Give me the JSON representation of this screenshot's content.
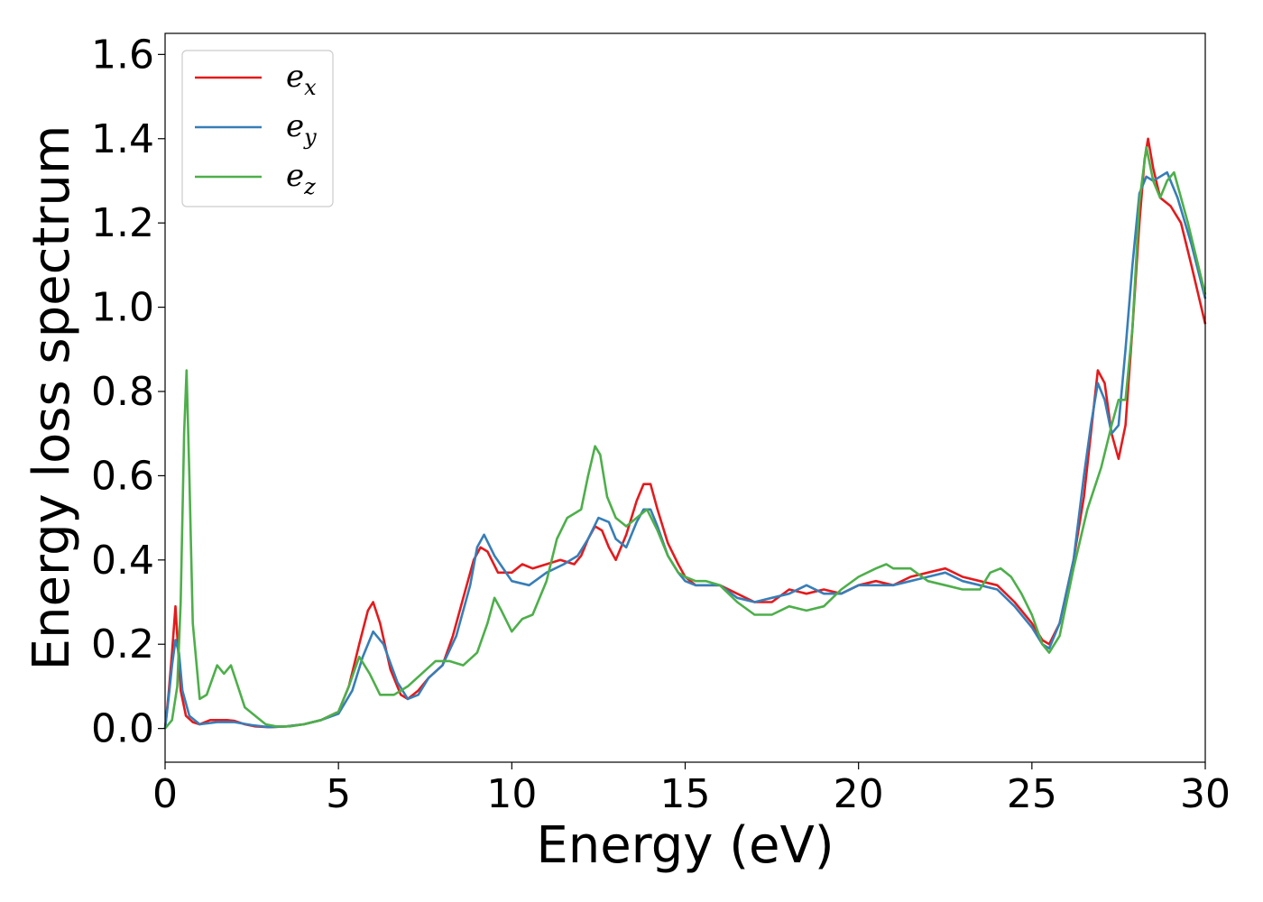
{
  "chart_data": {
    "type": "line",
    "title": "",
    "xlabel": "Energy (eV)",
    "ylabel": "Energy loss spectrum",
    "xlim": [
      0,
      30
    ],
    "ylim": [
      -0.08,
      1.65
    ],
    "xticks": [
      0,
      5,
      10,
      15,
      20,
      25,
      30
    ],
    "xtick_labels": [
      "0",
      "5",
      "10",
      "15",
      "20",
      "25",
      "30"
    ],
    "yticks": [
      0.0,
      0.2,
      0.4,
      0.6,
      0.8,
      1.0,
      1.2,
      1.4,
      1.6
    ],
    "ytick_labels": [
      "0.0",
      "0.2",
      "0.4",
      "0.6",
      "0.8",
      "1.0",
      "1.2",
      "1.4",
      "1.6"
    ],
    "grid": false,
    "legend_position": "top-left",
    "series": [
      {
        "name": "e",
        "subscript": "x",
        "color": "#e41a1c",
        "x": [
          0,
          0.1,
          0.2,
          0.3,
          0.35,
          0.45,
          0.6,
          0.8,
          1.0,
          1.3,
          1.5,
          1.8,
          2.0,
          2.3,
          2.6,
          3.0,
          3.5,
          4.0,
          4.5,
          5.0,
          5.3,
          5.6,
          5.85,
          6.0,
          6.2,
          6.5,
          6.8,
          7.0,
          7.3,
          7.6,
          8.0,
          8.3,
          8.6,
          8.9,
          9.1,
          9.3,
          9.6,
          10.0,
          10.3,
          10.6,
          11.0,
          11.4,
          11.8,
          12.0,
          12.2,
          12.4,
          12.6,
          12.8,
          13.0,
          13.3,
          13.6,
          13.8,
          14.0,
          14.2,
          14.5,
          14.8,
          15.0,
          15.3,
          15.6,
          16.0,
          16.5,
          17.0,
          17.5,
          18.0,
          18.5,
          19.0,
          19.5,
          20.0,
          20.5,
          21.0,
          21.5,
          22.0,
          22.5,
          23.0,
          23.5,
          24.0,
          24.5,
          25.0,
          25.3,
          25.5,
          25.8,
          26.2,
          26.5,
          26.7,
          26.9,
          27.1,
          27.3,
          27.5,
          27.7,
          27.9,
          28.1,
          28.25,
          28.35,
          28.5,
          28.7,
          29.0,
          29.3,
          29.6,
          30.0
        ],
        "y": [
          0.0,
          0.08,
          0.18,
          0.29,
          0.22,
          0.09,
          0.03,
          0.015,
          0.01,
          0.02,
          0.02,
          0.02,
          0.018,
          0.01,
          0.005,
          0.003,
          0.005,
          0.01,
          0.02,
          0.04,
          0.1,
          0.2,
          0.28,
          0.3,
          0.25,
          0.14,
          0.08,
          0.07,
          0.09,
          0.12,
          0.15,
          0.22,
          0.31,
          0.4,
          0.43,
          0.42,
          0.37,
          0.37,
          0.39,
          0.38,
          0.39,
          0.4,
          0.39,
          0.41,
          0.45,
          0.48,
          0.47,
          0.43,
          0.4,
          0.46,
          0.54,
          0.58,
          0.58,
          0.52,
          0.44,
          0.39,
          0.36,
          0.34,
          0.34,
          0.34,
          0.32,
          0.3,
          0.3,
          0.33,
          0.32,
          0.33,
          0.32,
          0.34,
          0.35,
          0.34,
          0.36,
          0.37,
          0.38,
          0.36,
          0.35,
          0.34,
          0.3,
          0.25,
          0.21,
          0.2,
          0.25,
          0.4,
          0.55,
          0.7,
          0.85,
          0.82,
          0.7,
          0.64,
          0.72,
          0.95,
          1.2,
          1.35,
          1.4,
          1.33,
          1.26,
          1.24,
          1.2,
          1.1,
          0.96
        ]
      },
      {
        "name": "e",
        "subscript": "y",
        "color": "#377eb8",
        "x": [
          0,
          0.1,
          0.2,
          0.3,
          0.4,
          0.5,
          0.7,
          1.0,
          1.5,
          2.0,
          2.5,
          3.0,
          3.5,
          4.0,
          4.5,
          5.0,
          5.4,
          5.7,
          6.0,
          6.3,
          6.7,
          7.0,
          7.3,
          7.6,
          8.0,
          8.4,
          8.8,
          9.0,
          9.2,
          9.5,
          10.0,
          10.5,
          11.0,
          11.5,
          11.9,
          12.2,
          12.5,
          12.8,
          13.0,
          13.3,
          13.6,
          13.8,
          14.0,
          14.2,
          14.5,
          14.8,
          15.0,
          15.3,
          15.6,
          16.0,
          16.5,
          17.0,
          17.5,
          18.0,
          18.5,
          19.0,
          19.5,
          20.0,
          20.5,
          21.0,
          21.5,
          22.0,
          22.5,
          23.0,
          23.5,
          24.0,
          24.5,
          25.0,
          25.3,
          25.5,
          25.8,
          26.2,
          26.5,
          26.7,
          26.9,
          27.1,
          27.3,
          27.5,
          27.7,
          27.9,
          28.1,
          28.3,
          28.5,
          28.7,
          28.9,
          29.2,
          29.6,
          30.0
        ],
        "y": [
          0.0,
          0.07,
          0.15,
          0.21,
          0.18,
          0.09,
          0.03,
          0.01,
          0.015,
          0.015,
          0.008,
          0.003,
          0.005,
          0.01,
          0.02,
          0.035,
          0.09,
          0.17,
          0.23,
          0.2,
          0.11,
          0.07,
          0.08,
          0.12,
          0.15,
          0.22,
          0.34,
          0.43,
          0.46,
          0.41,
          0.35,
          0.34,
          0.37,
          0.39,
          0.41,
          0.45,
          0.5,
          0.49,
          0.45,
          0.43,
          0.49,
          0.52,
          0.52,
          0.48,
          0.41,
          0.37,
          0.35,
          0.34,
          0.34,
          0.34,
          0.31,
          0.3,
          0.31,
          0.32,
          0.34,
          0.32,
          0.32,
          0.34,
          0.34,
          0.34,
          0.35,
          0.36,
          0.37,
          0.35,
          0.34,
          0.33,
          0.29,
          0.24,
          0.2,
          0.19,
          0.25,
          0.4,
          0.6,
          0.72,
          0.82,
          0.78,
          0.7,
          0.72,
          0.9,
          1.1,
          1.27,
          1.31,
          1.3,
          1.31,
          1.32,
          1.26,
          1.15,
          1.02
        ]
      },
      {
        "name": "e",
        "subscript": "z",
        "color": "#4daf4a",
        "x": [
          0,
          0.2,
          0.35,
          0.45,
          0.55,
          0.62,
          0.7,
          0.8,
          1.0,
          1.2,
          1.5,
          1.7,
          1.9,
          2.1,
          2.3,
          2.6,
          2.9,
          3.2,
          3.6,
          4.0,
          4.5,
          5.0,
          5.3,
          5.6,
          5.9,
          6.2,
          6.6,
          7.0,
          7.4,
          7.8,
          8.2,
          8.6,
          9.0,
          9.3,
          9.5,
          9.7,
          10.0,
          10.3,
          10.6,
          11.0,
          11.3,
          11.6,
          12.0,
          12.2,
          12.4,
          12.55,
          12.75,
          13.0,
          13.3,
          13.6,
          13.9,
          14.2,
          14.5,
          14.8,
          15.0,
          15.3,
          15.6,
          16.0,
          16.5,
          17.0,
          17.5,
          18.0,
          18.5,
          19.0,
          19.5,
          20.0,
          20.5,
          20.8,
          21.0,
          21.5,
          22.0,
          22.5,
          23.0,
          23.5,
          23.8,
          24.1,
          24.4,
          24.7,
          25.0,
          25.3,
          25.5,
          25.8,
          26.2,
          26.6,
          27.0,
          27.3,
          27.5,
          27.7,
          27.9,
          28.1,
          28.3,
          28.5,
          28.7,
          28.9,
          29.1,
          29.5,
          30.0
        ],
        "y": [
          0.0,
          0.02,
          0.1,
          0.3,
          0.7,
          0.85,
          0.6,
          0.25,
          0.07,
          0.08,
          0.15,
          0.13,
          0.15,
          0.1,
          0.05,
          0.03,
          0.01,
          0.005,
          0.005,
          0.01,
          0.02,
          0.04,
          0.1,
          0.17,
          0.13,
          0.08,
          0.08,
          0.1,
          0.13,
          0.16,
          0.16,
          0.15,
          0.18,
          0.25,
          0.31,
          0.28,
          0.23,
          0.26,
          0.27,
          0.35,
          0.45,
          0.5,
          0.52,
          0.6,
          0.67,
          0.65,
          0.55,
          0.5,
          0.48,
          0.5,
          0.52,
          0.47,
          0.41,
          0.37,
          0.36,
          0.35,
          0.35,
          0.34,
          0.3,
          0.27,
          0.27,
          0.29,
          0.28,
          0.29,
          0.33,
          0.36,
          0.38,
          0.39,
          0.38,
          0.38,
          0.35,
          0.34,
          0.33,
          0.33,
          0.37,
          0.38,
          0.36,
          0.32,
          0.27,
          0.2,
          0.18,
          0.22,
          0.38,
          0.52,
          0.62,
          0.72,
          0.78,
          0.78,
          0.95,
          1.25,
          1.38,
          1.3,
          1.26,
          1.3,
          1.32,
          1.2,
          1.03
        ]
      }
    ]
  }
}
